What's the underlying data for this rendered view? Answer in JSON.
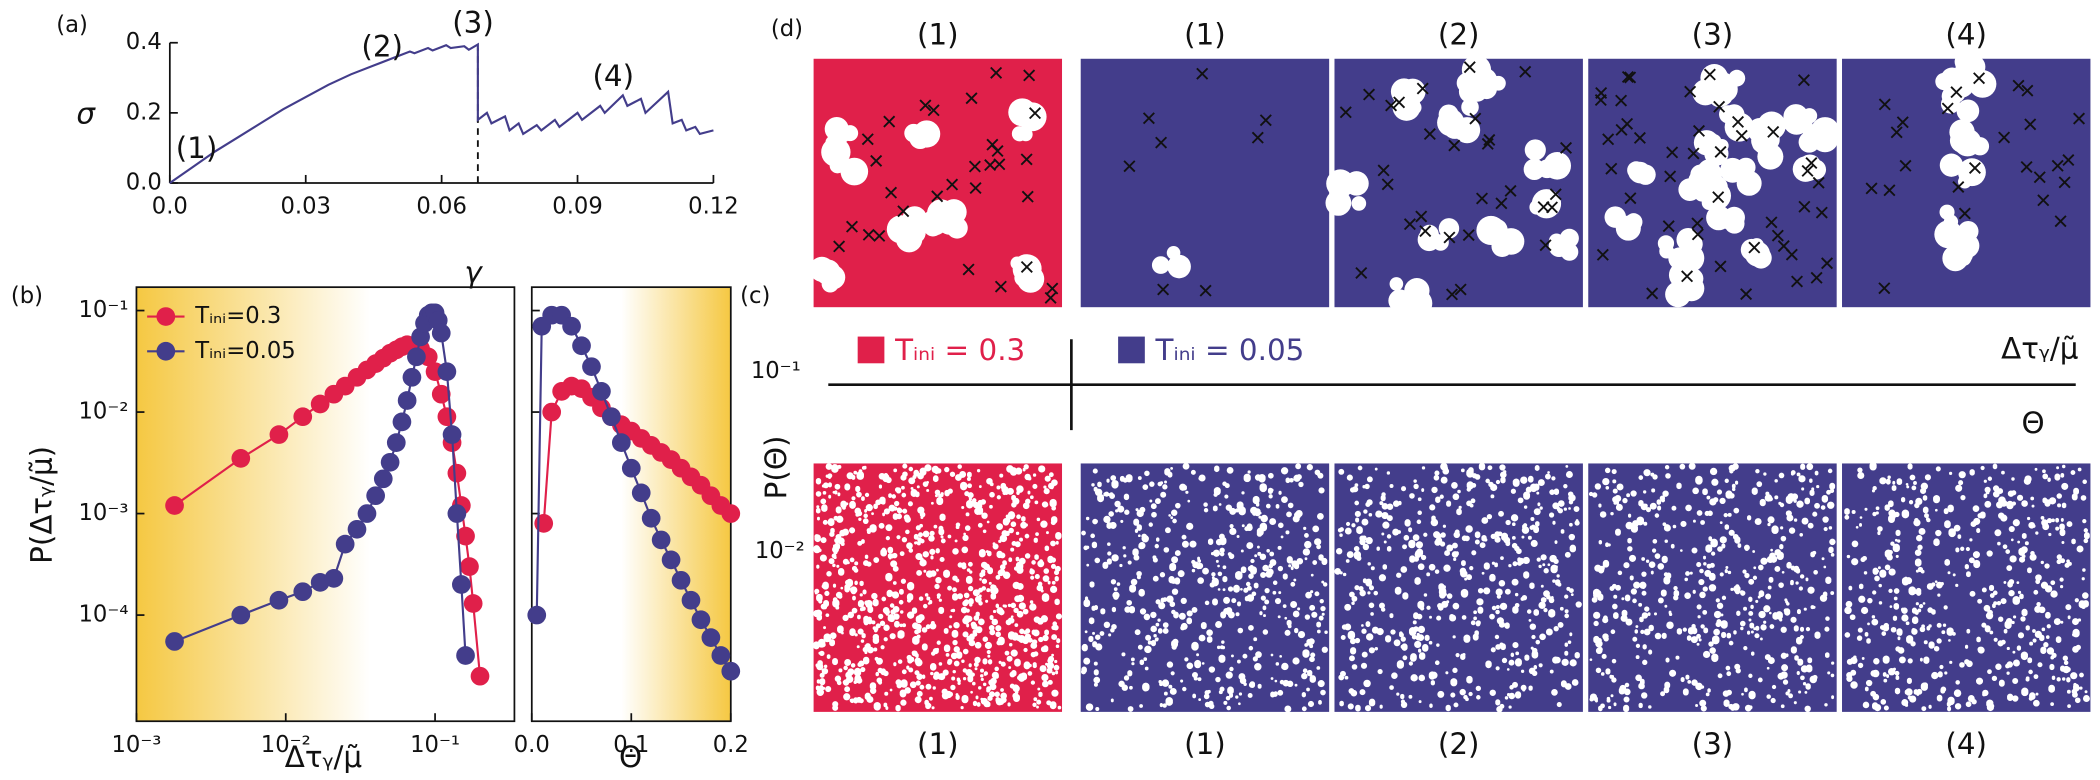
{
  "chart_data": [
    {
      "type": "line",
      "label": "(a)",
      "xlabel": "γ",
      "ylabel": "σ",
      "color": "#433d8b",
      "x": [
        0,
        0.005,
        0.01,
        0.015,
        0.02,
        0.025,
        0.03,
        0.035,
        0.04,
        0.045,
        0.05,
        0.053,
        0.054,
        0.057,
        0.058,
        0.061,
        0.062,
        0.065,
        0.066,
        0.068,
        0.068,
        0.07,
        0.071,
        0.074,
        0.075,
        0.077,
        0.078,
        0.081,
        0.082,
        0.085,
        0.086,
        0.09,
        0.091,
        0.095,
        0.096,
        0.1,
        0.101,
        0.104,
        0.105,
        0.11,
        0.111,
        0.113,
        0.114,
        0.116,
        0.117,
        0.12
      ],
      "values": [
        0,
        0.045,
        0.09,
        0.13,
        0.17,
        0.21,
        0.245,
        0.28,
        0.31,
        0.335,
        0.36,
        0.375,
        0.37,
        0.385,
        0.378,
        0.393,
        0.385,
        0.39,
        0.38,
        0.395,
        0.18,
        0.2,
        0.17,
        0.19,
        0.15,
        0.17,
        0.14,
        0.165,
        0.15,
        0.18,
        0.16,
        0.2,
        0.18,
        0.22,
        0.2,
        0.25,
        0.22,
        0.24,
        0.2,
        0.26,
        0.17,
        0.18,
        0.15,
        0.16,
        0.14,
        0.15
      ],
      "vline": 0.068,
      "annotations": [
        "(1)",
        "(2)",
        "(3)",
        "(4)"
      ],
      "xlim": [
        0,
        0.12
      ],
      "xticks": [
        {
          "value": 0,
          "label": "0.0"
        },
        0.03,
        0.06,
        0.09,
        0.12
      ],
      "ylim": [
        0,
        0.4
      ],
      "yticks": [
        {
          "value": 0,
          "label": "0.0"
        },
        0.2,
        0.4
      ]
    },
    {
      "type": "line",
      "label": "(b)",
      "xlabel": "Δτᵧ/μ̃",
      "ylabel": "P(Δτᵧ/μ̃)",
      "xscale": "log",
      "yscale": "log",
      "marker": "o",
      "legend": "upper left",
      "series": [
        {
          "name": "Tᵢₙᵢ=0.3",
          "color": "#e0204a",
          "x": [
            0.0018,
            0.005,
            0.009,
            0.013,
            0.017,
            0.021,
            0.025,
            0.03,
            0.035,
            0.04,
            0.045,
            0.05,
            0.055,
            0.06,
            0.065,
            0.07,
            0.08,
            0.09,
            0.1,
            0.11,
            0.12,
            0.13,
            0.14,
            0.15,
            0.16,
            0.17,
            0.18,
            0.2
          ],
          "values": [
            0.0012,
            0.0035,
            0.006,
            0.009,
            0.012,
            0.015,
            0.018,
            0.022,
            0.026,
            0.03,
            0.034,
            0.038,
            0.041,
            0.044,
            0.046,
            0.045,
            0.042,
            0.035,
            0.025,
            0.015,
            0.009,
            0.005,
            0.0025,
            0.0012,
            0.0006,
            0.0003,
            0.00013,
            2.5e-05
          ]
        },
        {
          "name": "Tᵢₙᵢ=0.05",
          "color": "#433d8b",
          "x": [
            0.0018,
            0.005,
            0.009,
            0.013,
            0.017,
            0.021,
            0.025,
            0.03,
            0.035,
            0.04,
            0.045,
            0.05,
            0.055,
            0.06,
            0.065,
            0.07,
            0.075,
            0.08,
            0.085,
            0.09,
            0.095,
            0.1,
            0.105,
            0.11,
            0.12,
            0.13,
            0.14,
            0.15,
            0.16
          ],
          "values": [
            5.5e-05,
            0.0001,
            0.00014,
            0.00017,
            0.00021,
            0.00023,
            0.0005,
            0.0007,
            0.001,
            0.0015,
            0.0022,
            0.0032,
            0.005,
            0.008,
            0.013,
            0.022,
            0.035,
            0.055,
            0.075,
            0.09,
            0.095,
            0.095,
            0.08,
            0.06,
            0.025,
            0.006,
            0.001,
            0.0002,
            4e-05
          ]
        }
      ],
      "xlim": [
        0.001,
        0.34
      ],
      "xticks": [
        {
          "value": 0.001,
          "label": "10⁻³"
        },
        {
          "value": 0.01,
          "label": "10⁻²"
        },
        {
          "value": 0.1,
          "label": "10⁻¹"
        }
      ],
      "ylim": [
        9e-06,
        0.17
      ],
      "yticks": [
        {
          "value": 0.1,
          "label": "10⁻¹"
        },
        {
          "value": 0.01,
          "label": "10⁻²"
        },
        {
          "value": 0.001,
          "label": "10⁻³"
        },
        {
          "value": 0.0001,
          "label": "10⁻⁴"
        }
      ]
    },
    {
      "type": "line",
      "xlabel": "Θ",
      "yscale": "log",
      "marker": "o",
      "series": [
        {
          "color": "#e0204a",
          "x": [
            0.012,
            0.02,
            0.03,
            0.04,
            0.05,
            0.06,
            0.07,
            0.08,
            0.09,
            0.1,
            0.11,
            0.12,
            0.13,
            0.14,
            0.15,
            0.16,
            0.17,
            0.18,
            0.19,
            0.2
          ],
          "values": [
            0.0008,
            0.01,
            0.016,
            0.018,
            0.017,
            0.014,
            0.011,
            0.009,
            0.0075,
            0.0065,
            0.0055,
            0.0047,
            0.004,
            0.0034,
            0.0028,
            0.0023,
            0.0019,
            0.0015,
            0.0012,
            0.001
          ]
        },
        {
          "color": "#433d8b",
          "x": [
            0.005,
            0.01,
            0.02,
            0.03,
            0.04,
            0.05,
            0.06,
            0.07,
            0.08,
            0.09,
            0.1,
            0.11,
            0.12,
            0.13,
            0.14,
            0.15,
            0.16,
            0.17,
            0.18,
            0.19,
            0.2
          ],
          "values": [
            0.0001,
            0.07,
            0.09,
            0.09,
            0.07,
            0.045,
            0.028,
            0.016,
            0.009,
            0.005,
            0.0028,
            0.0016,
            0.0009,
            0.00055,
            0.00035,
            0.00022,
            0.00014,
            9e-05,
            6e-05,
            4e-05,
            2.8e-05
          ]
        }
      ],
      "xlim": [
        0,
        0.2
      ],
      "xticks": [
        {
          "value": 0,
          "label": "0.0"
        },
        0.1,
        0.2
      ],
      "ylim": [
        9e-06,
        0.17
      ],
      "yticks": [
        0.1,
        0.01,
        0.001,
        0.0001
      ]
    }
  ],
  "panel_c": {
    "label": "(c)",
    "ytick_labels": [
      "10⁻¹",
      "10⁻²"
    ],
    "ylabel": "P(Θ)",
    "xlabels": [
      "Δτᵧ/μ̃",
      "Θ"
    ],
    "legend": [
      "Tᵢₙᵢ = 0.3",
      "Tᵢₙᵢ = 0.05"
    ]
  },
  "panel_d": {
    "label": "(d)",
    "top_labels": [
      "(1)",
      "(1)",
      "(2)",
      "(3)",
      "(4)"
    ],
    "bottom_labels": [
      "(1)",
      "(1)",
      "(2)",
      "(3)",
      "(4)"
    ]
  }
}
